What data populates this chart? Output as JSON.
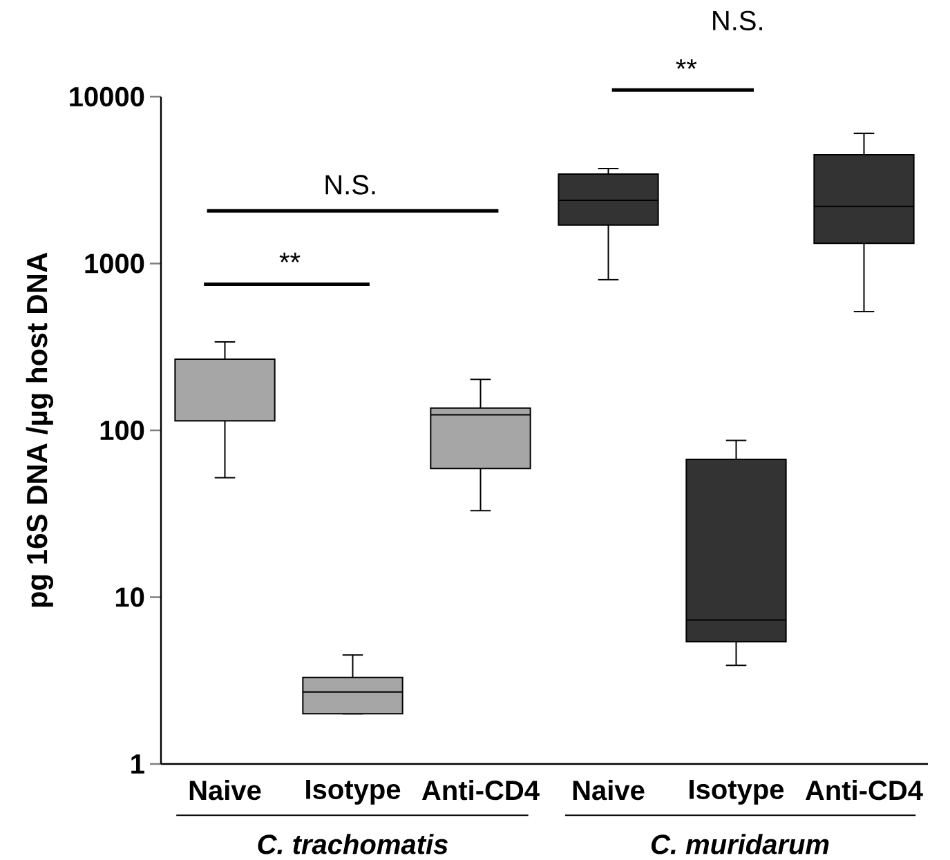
{
  "chart_data": {
    "type": "box",
    "ylabel": "pg 16S DNA /µg host DNA",
    "categories": [
      "Naive",
      "Isotype",
      "Anti-CD4",
      "Naive",
      "Isotype",
      "Anti-CD4"
    ],
    "boxes": [
      {
        "low": 52,
        "q1": 114,
        "median": 267,
        "q3": 267,
        "high": 339
      },
      {
        "low": 2.0,
        "q1": 2.0,
        "median": 2.7,
        "q3": 3.3,
        "high": 4.5
      },
      {
        "low": 33,
        "q1": 59,
        "median": 124,
        "q3": 136,
        "high": 202
      },
      {
        "low": 800,
        "q1": 1700,
        "median": 2390,
        "q3": 3440,
        "high": 3710
      },
      {
        "low": 3.9,
        "q1": 5.4,
        "median": 7.3,
        "q3": 67,
        "high": 87
      },
      {
        "low": 515,
        "q1": 1320,
        "median": 2200,
        "q3": 4490,
        "high": 6030
      }
    ],
    "colors": [
      "#a6a6a6",
      "#a6a6a6",
      "#a6a6a6",
      "#333333",
      "#333333",
      "#333333"
    ],
    "log": "y",
    "ylim": [
      1,
      10000
    ],
    "yticks": [
      1,
      10,
      100,
      1000,
      10000
    ],
    "annotations": [
      "N.S.",
      "**",
      "**",
      "N.S.",
      "C. trachomatis",
      "C. muridarum"
    ]
  }
}
